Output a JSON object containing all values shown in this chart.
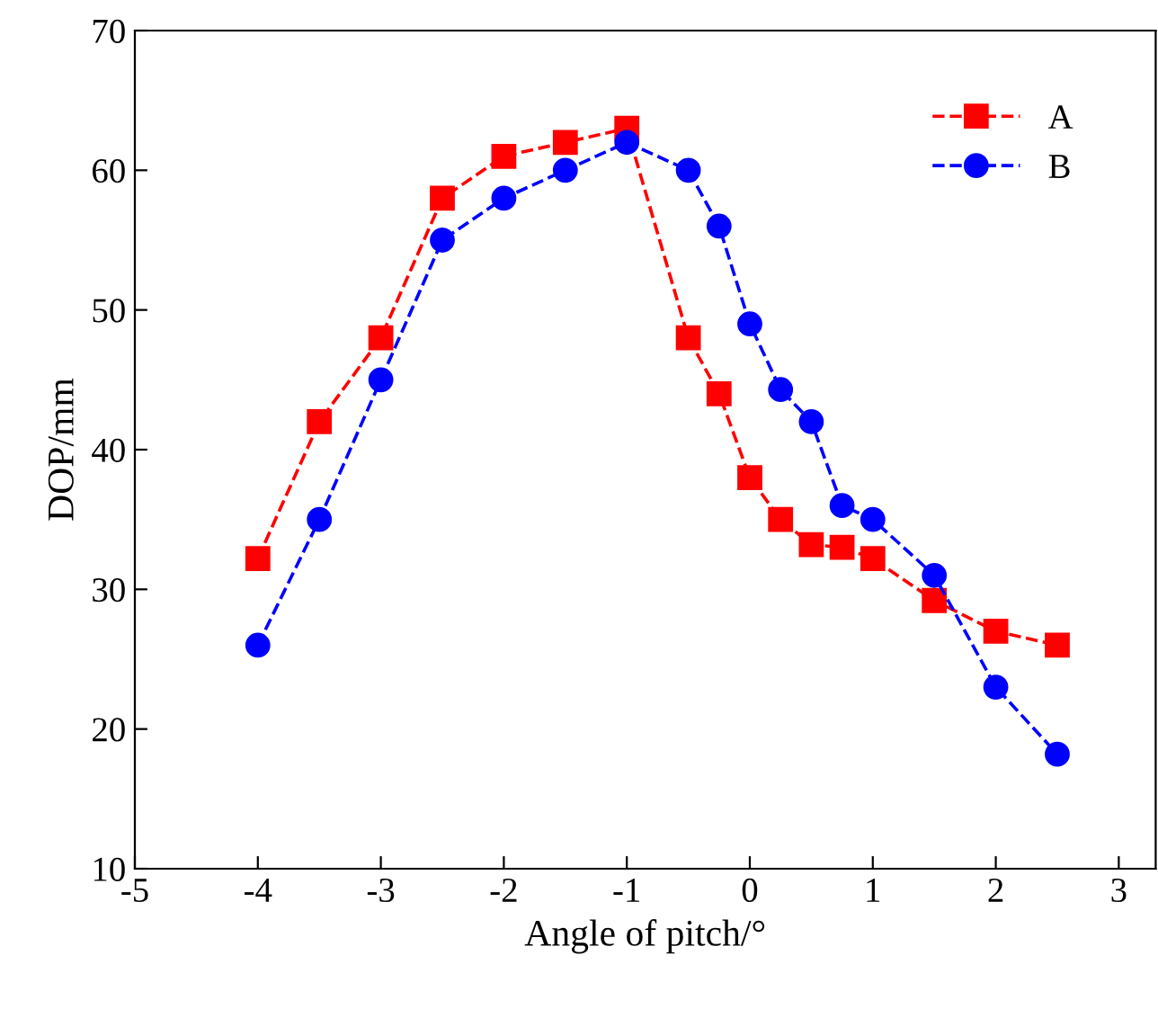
{
  "chart_data": {
    "type": "line",
    "xlabel": "Angle of pitch/°",
    "ylabel": "DOP/mm",
    "x": [
      -4,
      -3.5,
      -3,
      -2.5,
      -2,
      -1.5,
      -1,
      -0.5,
      -0.25,
      0,
      0.25,
      0.5,
      0.75,
      1,
      1.5,
      2,
      2.5
    ],
    "series": [
      {
        "name": "A",
        "color": "#ff0000",
        "marker": "square",
        "values": [
          32.2,
          42,
          48,
          58,
          61,
          62,
          63,
          48,
          44,
          38,
          35,
          33.2,
          33,
          32.2,
          29.2,
          27,
          26
        ]
      },
      {
        "name": "B",
        "color": "#0000ff",
        "marker": "circle",
        "values": [
          26,
          35,
          45,
          55,
          58,
          60,
          62,
          60,
          56,
          49,
          44.3,
          42,
          36,
          35,
          31,
          23,
          18.2
        ]
      }
    ],
    "line_style": "dashed",
    "xlim": [
      -5,
      3.3
    ],
    "ylim": [
      10,
      70
    ],
    "xticks": [
      -5,
      -4,
      -3,
      -2,
      -1,
      0,
      1,
      2,
      3
    ],
    "yticks": [
      10,
      20,
      30,
      40,
      50,
      60,
      70
    ],
    "grid": false,
    "legend": "top right"
  }
}
